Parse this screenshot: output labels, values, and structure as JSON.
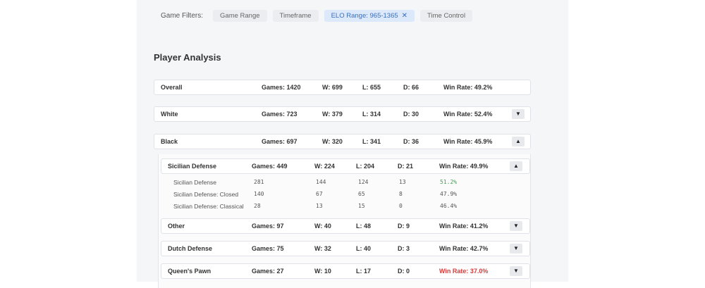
{
  "filters": {
    "label": "Game Filters:",
    "chips": [
      {
        "label": "Game Range"
      },
      {
        "label": "Timeframe"
      },
      {
        "label": "ELO Range: 965-1365",
        "close": "✕"
      },
      {
        "label": "Time Control"
      }
    ]
  },
  "title": "Player Analysis",
  "rows": {
    "overall": {
      "name": "Overall",
      "games": "Games: 1420",
      "w": "W: 699",
      "l": "L: 655",
      "d": "D: 66",
      "win": "Win Rate: 49.2%"
    },
    "white": {
      "name": "White",
      "games": "Games: 723",
      "w": "W: 379",
      "l": "L: 314",
      "d": "D: 30",
      "win": "Win Rate: 52.4%",
      "toggle": "▼"
    },
    "black": {
      "name": "Black",
      "games": "Games: 697",
      "w": "W: 320",
      "l": "L: 341",
      "d": "D: 36",
      "win": "Win Rate: 45.9%",
      "toggle": "▲"
    }
  },
  "openings": [
    {
      "name": "Sicilian Defense",
      "games": "Games: 449",
      "w": "W: 224",
      "l": "L: 204",
      "d": "D: 21",
      "win": "Win Rate: 49.9%",
      "toggle": "▲"
    },
    {
      "name": "Other",
      "games": "Games: 97",
      "w": "W: 40",
      "l": "L: 48",
      "d": "D: 9",
      "win": "Win Rate: 41.2%",
      "toggle": "▼"
    },
    {
      "name": "Dutch Defense",
      "games": "Games: 75",
      "w": "W: 32",
      "l": "L: 40",
      "d": "D: 3",
      "win": "Win Rate: 42.7%",
      "toggle": "▼"
    },
    {
      "name": "Queen's Pawn",
      "games": "Games: 27",
      "w": "W: 10",
      "l": "L: 17",
      "d": "D: 0",
      "win": "Win Rate: 37.0%",
      "toggle": "▼"
    }
  ],
  "variations": [
    {
      "name": "Sicilian Defense",
      "games": "281",
      "w": "144",
      "l": "124",
      "d": "13",
      "win": "51.2%"
    },
    {
      "name": "Sicilian Defense: Closed",
      "games": "140",
      "w": "67",
      "l": "65",
      "d": "8",
      "win": "47.9%"
    },
    {
      "name": "Sicilian Defense: Classical",
      "games": "28",
      "w": "13",
      "l": "15",
      "d": "0",
      "win": "46.4%"
    }
  ],
  "colors": {
    "good": "#3fa34d",
    "bad": "#d43c3c",
    "accent": "#3d6fb8"
  }
}
